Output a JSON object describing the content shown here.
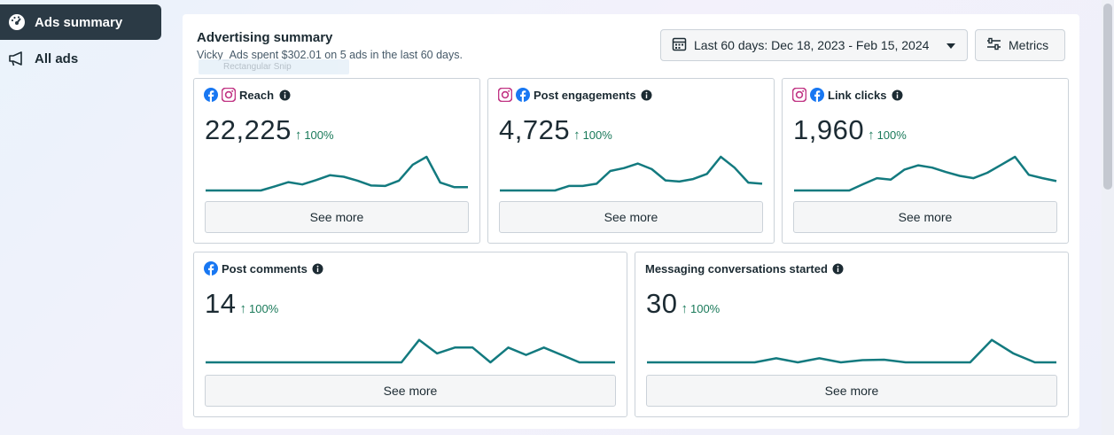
{
  "sidebar": {
    "items": [
      {
        "label": "Ads summary",
        "icon": "dashboard-gauge-icon",
        "active": true
      },
      {
        "label": "All ads",
        "icon": "megaphone-icon",
        "active": false
      }
    ]
  },
  "header": {
    "title": "Advertising summary",
    "subtitle": "Vicky_Ads spent $302.01 on 5 ads in the last 60 days.",
    "overlay_chip": "Rectangular Snip",
    "date_range": "Last 60 days: Dec 18, 2023 - Feb 15, 2024",
    "metrics_label": "Metrics"
  },
  "colors": {
    "line": "#137a7f",
    "positive": "#1a7a5a",
    "sidebar_active": "#2b3a45"
  },
  "cards": [
    {
      "label": "Reach",
      "value": "22,225",
      "change": "100%",
      "platforms": [
        "facebook",
        "instagram"
      ],
      "see_more": "See more",
      "series": [
        0,
        0,
        0,
        0,
        0,
        0.18,
        0.37,
        0.27,
        0.46,
        0.68,
        0.61,
        0.44,
        0.22,
        0.2,
        0.44,
        1.15,
        1.5,
        0.35,
        0.15,
        0.15
      ]
    },
    {
      "label": "Post engagements",
      "value": "4,725",
      "change": "100%",
      "platforms": [
        "instagram",
        "facebook"
      ],
      "see_more": "See more",
      "series": [
        0,
        0,
        0,
        0,
        0,
        0.2,
        0.2,
        0.3,
        0.87,
        1.0,
        1.2,
        0.95,
        0.45,
        0.4,
        0.51,
        0.74,
        1.5,
        1.02,
        0.35,
        0.3
      ]
    },
    {
      "label": "Link clicks",
      "value": "1,960",
      "change": "100%",
      "platforms": [
        "instagram",
        "facebook"
      ],
      "see_more": "See more",
      "series": [
        0,
        0,
        0,
        0,
        0,
        0.28,
        0.55,
        0.48,
        0.93,
        1.12,
        1.02,
        0.82,
        0.65,
        0.55,
        0.79,
        1.14,
        1.5,
        0.7,
        0.55,
        0.42
      ]
    },
    {
      "label": "Post comments",
      "value": "14",
      "change": "100%",
      "platforms": [
        "facebook"
      ],
      "see_more": "See more",
      "series": [
        0,
        0,
        0,
        0,
        0,
        0,
        0,
        0,
        0,
        0,
        0,
        0,
        1,
        0.4,
        0.66,
        0.66,
        0,
        0.66,
        0.33,
        0.66,
        0.33,
        0,
        0,
        0
      ]
    },
    {
      "label": "Messaging conversations started",
      "value": "30",
      "change": "100%",
      "platforms": [],
      "see_more": "See more",
      "series": [
        0,
        0,
        0,
        0,
        0,
        0,
        0.18,
        0,
        0.18,
        0,
        0.1,
        0.12,
        0,
        0,
        0,
        0,
        1.0,
        0.4,
        0,
        0
      ]
    }
  ]
}
